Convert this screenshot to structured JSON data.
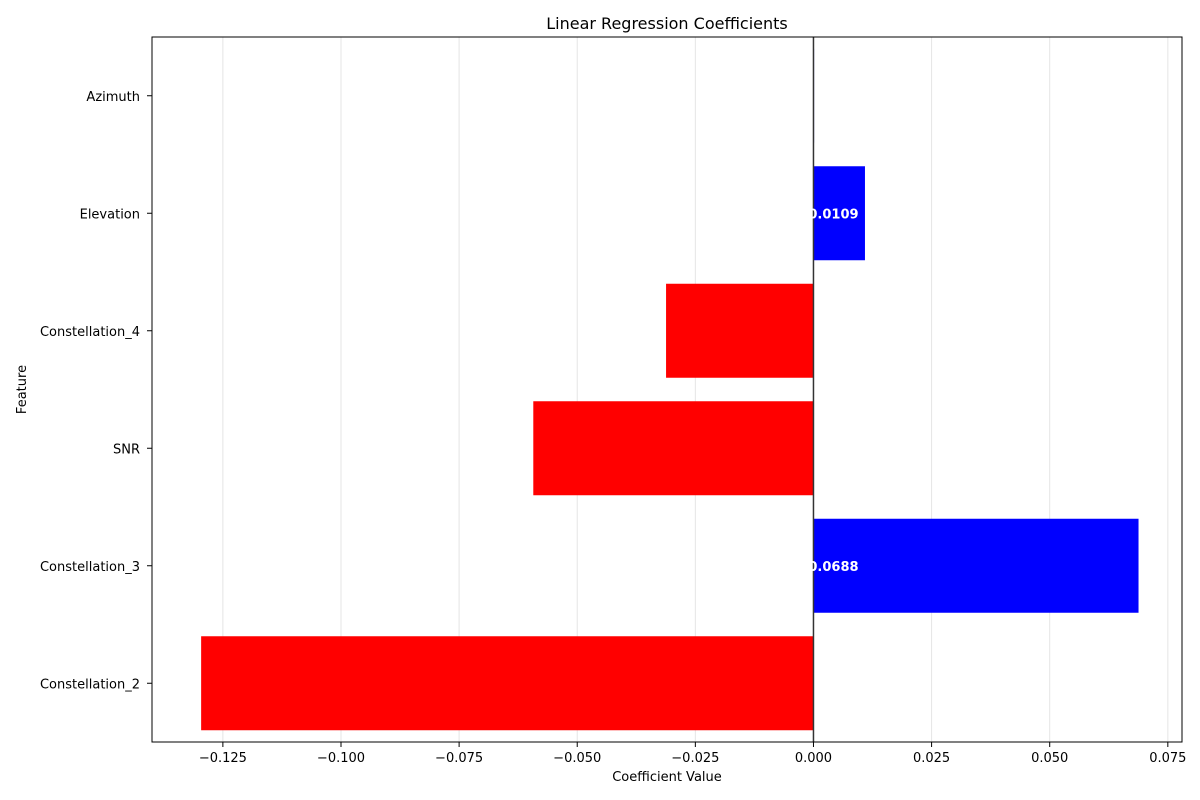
{
  "chart_data": {
    "type": "bar",
    "orientation": "horizontal",
    "title": "Linear Regression Coefficients",
    "xlabel": "Coefficient Value",
    "ylabel": "Feature",
    "xlim": [
      -0.14,
      0.078
    ],
    "xticks": [
      -0.125,
      -0.1,
      -0.075,
      -0.05,
      -0.025,
      0.0,
      0.025,
      0.05,
      0.075
    ],
    "xtick_labels": [
      "−0.125",
      "−0.100",
      "−0.075",
      "−0.050",
      "−0.025",
      "0.000",
      "0.025",
      "0.050",
      "0.075"
    ],
    "grid": "x",
    "colors": {
      "positive": "#0000ff",
      "negative": "#ff0000",
      "zero_line": "#333333",
      "grid": "#e5e5e5"
    },
    "categories": [
      "Constellation_2",
      "Constellation_3",
      "SNR",
      "Constellation_4",
      "Elevation",
      "Azimuth"
    ],
    "values": [
      -0.1296,
      0.0688,
      -0.0593,
      -0.0312,
      0.0109,
      0.0001
    ],
    "data_labels": [
      "",
      "0.0688",
      "",
      "",
      "0.0109",
      ""
    ]
  }
}
